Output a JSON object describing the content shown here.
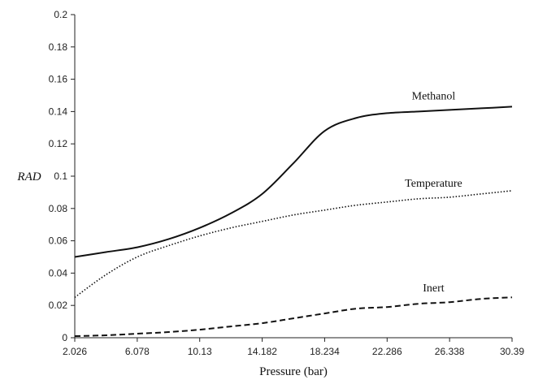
{
  "chart_data": {
    "type": "line",
    "xlabel": "Pressure (bar)",
    "ylabel": "RAD",
    "xlim": [
      2.026,
      30.39
    ],
    "ylim": [
      0,
      0.2
    ],
    "x_ticks": [
      "2.026",
      "6.078",
      "10.13",
      "14.182",
      "18.234",
      "22.286",
      "26.338",
      "30.39"
    ],
    "y_ticks": [
      "0",
      "0.02",
      "0.04",
      "0.06",
      "0.08",
      "0.1",
      "0.12",
      "0.14",
      "0.16",
      "0.18",
      "0.2"
    ],
    "grid": false,
    "x": [
      2.026,
      4.052,
      6.078,
      8.104,
      10.13,
      12.156,
      14.182,
      16.208,
      18.234,
      20.26,
      22.286,
      24.312,
      26.338,
      28.364,
      30.39
    ],
    "series": [
      {
        "name": "Methanol",
        "line_style": "solid",
        "values": [
          0.05,
          0.053,
          0.056,
          0.061,
          0.068,
          0.077,
          0.089,
          0.108,
          0.128,
          0.136,
          0.139,
          0.14,
          0.141,
          0.142,
          0.143
        ]
      },
      {
        "name": "Temperature",
        "line_style": "dotted",
        "values": [
          0.025,
          0.039,
          0.05,
          0.057,
          0.063,
          0.068,
          0.072,
          0.076,
          0.079,
          0.082,
          0.084,
          0.086,
          0.087,
          0.089,
          0.091
        ]
      },
      {
        "name": "Inert",
        "line_style": "dashed",
        "values": [
          0.001,
          0.0015,
          0.0025,
          0.0035,
          0.005,
          0.007,
          0.009,
          0.012,
          0.015,
          0.018,
          0.019,
          0.021,
          0.022,
          0.024,
          0.025
        ]
      }
    ]
  }
}
